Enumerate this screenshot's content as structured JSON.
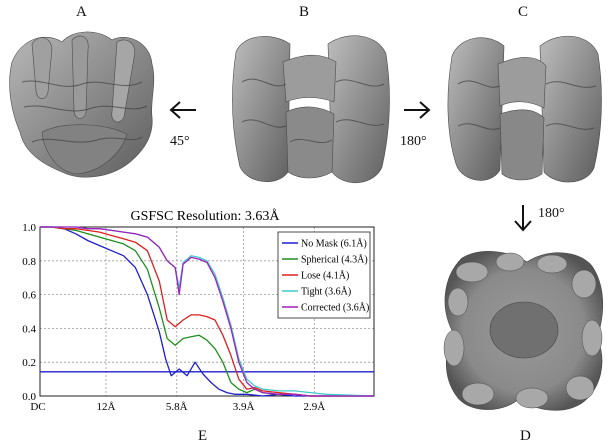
{
  "panels": {
    "a": "A",
    "b": "B",
    "c": "C",
    "d": "D",
    "e": "E"
  },
  "rotations": {
    "left": "45°",
    "right": "180°",
    "down": "180°"
  },
  "colors": {
    "density": "#8c8c8c",
    "no_mask": "#1f1fcc",
    "spherical": "#1f8f1f",
    "loose": "#dd2020",
    "tight": "#44c8c8",
    "corrected": "#a020c0",
    "threshold": "#1f1fcc"
  },
  "chart_data": {
    "type": "line",
    "title": "GSFSC Resolution: 3.63Å",
    "x_tick_labels": [
      "DC",
      "12Å",
      "5.8Å",
      "3.9Å",
      "2.9Å"
    ],
    "x_tick_positions": [
      0,
      0.083,
      0.172,
      0.256,
      0.345
    ],
    "xlim": [
      0,
      0.42
    ],
    "ylim": [
      0,
      1.0
    ],
    "y_tick_labels": [
      "0.0",
      "0.2",
      "0.4",
      "0.6",
      "0.8",
      "1.0"
    ],
    "y_ticks": [
      0,
      0.2,
      0.4,
      0.6,
      0.8,
      1.0
    ],
    "grid": true,
    "legend_position": "top-right",
    "threshold": 0.143,
    "series": [
      {
        "name": "No Mask (6.1Å)",
        "color_key": "no_mask",
        "x": [
          0,
          0.015,
          0.03,
          0.045,
          0.06,
          0.075,
          0.09,
          0.105,
          0.12,
          0.135,
          0.15,
          0.158,
          0.165,
          0.175,
          0.185,
          0.195,
          0.205,
          0.215,
          0.225,
          0.235,
          0.245,
          0.26,
          0.28,
          0.3,
          0.32,
          0.34,
          0.36,
          0.38,
          0.4,
          0.42
        ],
        "y": [
          1.0,
          1.0,
          0.99,
          0.96,
          0.92,
          0.89,
          0.86,
          0.83,
          0.76,
          0.6,
          0.38,
          0.22,
          0.12,
          0.16,
          0.12,
          0.2,
          0.13,
          0.08,
          0.04,
          0.02,
          0.01,
          0.01,
          0.0,
          0.01,
          0.0,
          0.0,
          0.0,
          0.0,
          0.0,
          0.0
        ]
      },
      {
        "name": "Spherical (4.3Å)",
        "color_key": "spherical",
        "x": [
          0,
          0.015,
          0.03,
          0.045,
          0.06,
          0.075,
          0.09,
          0.105,
          0.12,
          0.135,
          0.15,
          0.16,
          0.17,
          0.18,
          0.19,
          0.2,
          0.21,
          0.22,
          0.23,
          0.24,
          0.25,
          0.26,
          0.27,
          0.28,
          0.3,
          0.32,
          0.34,
          0.36,
          0.38,
          0.42
        ],
        "y": [
          1.0,
          1.0,
          0.99,
          0.98,
          0.96,
          0.94,
          0.92,
          0.9,
          0.86,
          0.75,
          0.52,
          0.34,
          0.3,
          0.34,
          0.35,
          0.36,
          0.33,
          0.28,
          0.2,
          0.08,
          0.04,
          0.02,
          0.04,
          0.02,
          0.01,
          0.01,
          0.0,
          0.0,
          0.0,
          0.0
        ]
      },
      {
        "name": "Lose (4.1Å)",
        "color_key": "loose",
        "x": [
          0,
          0.015,
          0.03,
          0.045,
          0.06,
          0.075,
          0.09,
          0.105,
          0.12,
          0.135,
          0.15,
          0.16,
          0.17,
          0.18,
          0.19,
          0.2,
          0.21,
          0.22,
          0.23,
          0.24,
          0.25,
          0.26,
          0.27,
          0.28,
          0.3,
          0.32,
          0.34,
          0.36,
          0.38,
          0.42
        ],
        "y": [
          1.0,
          1.0,
          0.99,
          0.99,
          0.98,
          0.97,
          0.95,
          0.93,
          0.91,
          0.86,
          0.68,
          0.45,
          0.41,
          0.45,
          0.48,
          0.48,
          0.47,
          0.45,
          0.36,
          0.24,
          0.1,
          0.04,
          0.05,
          0.03,
          0.02,
          0.01,
          0.0,
          0.0,
          0.0,
          0.0
        ]
      },
      {
        "name": "Tight (3.6Å)",
        "color_key": "tight",
        "x": [
          0,
          0.015,
          0.03,
          0.045,
          0.06,
          0.075,
          0.09,
          0.105,
          0.12,
          0.135,
          0.15,
          0.16,
          0.17,
          0.175,
          0.18,
          0.19,
          0.2,
          0.21,
          0.22,
          0.23,
          0.24,
          0.25,
          0.26,
          0.27,
          0.28,
          0.3,
          0.32,
          0.34,
          0.36,
          0.42
        ],
        "y": [
          1.0,
          1.0,
          1.0,
          1.0,
          0.99,
          0.99,
          0.98,
          0.97,
          0.96,
          0.94,
          0.88,
          0.8,
          0.76,
          0.64,
          0.79,
          0.83,
          0.82,
          0.8,
          0.72,
          0.58,
          0.42,
          0.22,
          0.1,
          0.06,
          0.04,
          0.03,
          0.03,
          0.02,
          0.01,
          0.0
        ]
      },
      {
        "name": "Corrected (3.6Å)",
        "color_key": "corrected",
        "x": [
          0,
          0.015,
          0.03,
          0.045,
          0.06,
          0.075,
          0.09,
          0.105,
          0.12,
          0.135,
          0.15,
          0.16,
          0.17,
          0.175,
          0.18,
          0.19,
          0.2,
          0.21,
          0.22,
          0.23,
          0.24,
          0.25,
          0.26,
          0.27,
          0.28,
          0.3,
          0.32,
          0.34,
          0.36,
          0.42
        ],
        "y": [
          1.0,
          1.0,
          1.0,
          1.0,
          0.99,
          0.99,
          0.98,
          0.97,
          0.96,
          0.94,
          0.88,
          0.8,
          0.76,
          0.6,
          0.78,
          0.82,
          0.81,
          0.79,
          0.7,
          0.56,
          0.4,
          0.2,
          0.08,
          0.04,
          0.02,
          0.01,
          0.01,
          0.0,
          0.0,
          0.0
        ]
      }
    ]
  }
}
